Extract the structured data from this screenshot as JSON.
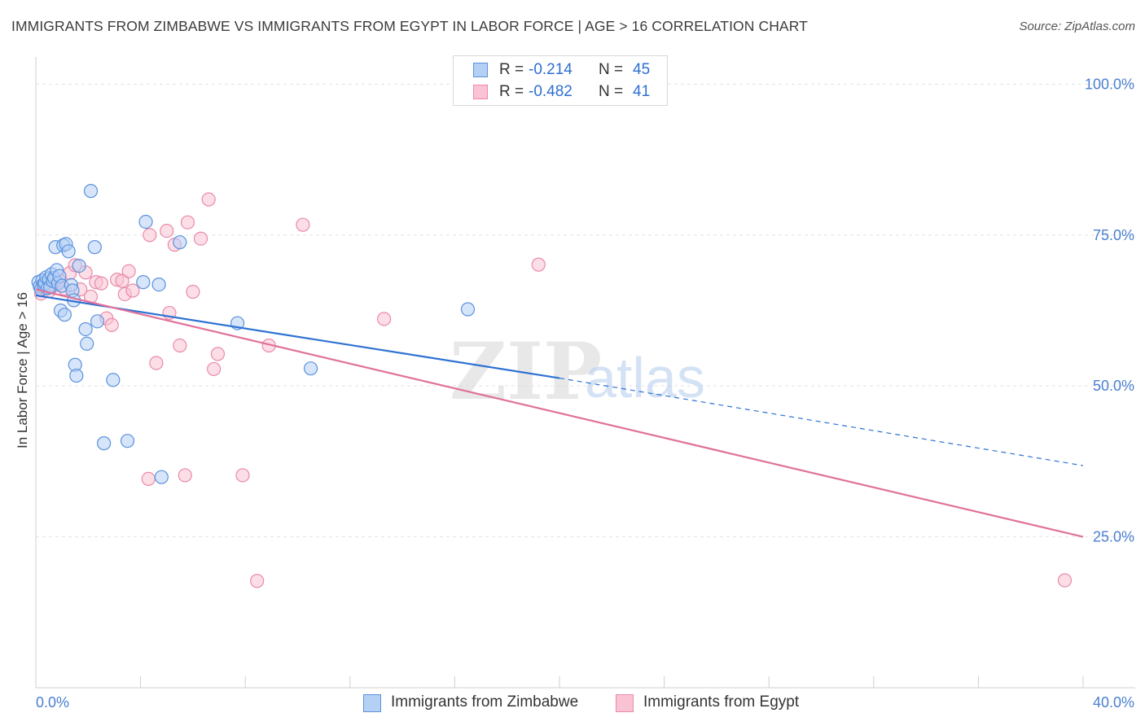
{
  "header": {
    "title": "IMMIGRANTS FROM ZIMBABWE VS IMMIGRANTS FROM EGYPT IN LABOR FORCE | AGE > 16 CORRELATION CHART",
    "source": "Source: ZipAtlas.com"
  },
  "watermark": {
    "zip": "ZIP",
    "atlas": "atlas"
  },
  "legend": {
    "r_label": "R =",
    "n_label": "N =",
    "rows": [
      {
        "r": "-0.214",
        "n": "45"
      },
      {
        "r": "-0.482",
        "n": "41"
      }
    ]
  },
  "colors": {
    "zimbabwe_fill": "#b5d0f5",
    "zimbabwe_stroke": "#5b92dc",
    "zimbabwe_line": "#2e72d2",
    "egypt_fill": "#f9c3d3",
    "egypt_stroke": "#e98aa9",
    "egypt_line": "#e0719a",
    "tick_label": "#4a7fd0"
  },
  "chart_data": {
    "type": "scatter",
    "title": "IMMIGRANTS FROM ZIMBABWE VS IMMIGRANTS FROM EGYPT IN LABOR FORCE | AGE > 16 CORRELATION CHART",
    "xlabel": "",
    "ylabel": "In Labor Force | Age > 16",
    "xlim": [
      0,
      40
    ],
    "ylim": [
      0,
      104.5
    ],
    "x_tick_labels": [
      "0.0%",
      "40.0%"
    ],
    "y_ticks": [
      25,
      50,
      75,
      100
    ],
    "y_tick_labels": [
      "25.0%",
      "50.0%",
      "75.0%",
      "100.0%"
    ],
    "grid": true,
    "series": [
      {
        "name": "Immigrants from Zimbabwe",
        "r": -0.214,
        "n": 45,
        "points": [
          [
            0.1,
            67.2
          ],
          [
            0.15,
            66.5
          ],
          [
            0.2,
            66.0
          ],
          [
            0.25,
            67.5
          ],
          [
            0.3,
            66.8
          ],
          [
            0.35,
            67.0
          ],
          [
            0.4,
            68.0
          ],
          [
            0.45,
            66.2
          ],
          [
            0.5,
            67.7
          ],
          [
            0.55,
            66.4
          ],
          [
            0.6,
            68.5
          ],
          [
            0.65,
            67.4
          ],
          [
            0.7,
            67.9
          ],
          [
            0.75,
            73.0
          ],
          [
            0.8,
            69.2
          ],
          [
            0.85,
            67.0
          ],
          [
            0.9,
            68.2
          ],
          [
            0.95,
            62.5
          ],
          [
            1.0,
            66.6
          ],
          [
            1.05,
            73.3
          ],
          [
            1.1,
            61.8
          ],
          [
            1.15,
            73.5
          ],
          [
            1.25,
            72.3
          ],
          [
            1.35,
            66.7
          ],
          [
            1.4,
            65.8
          ],
          [
            1.45,
            64.2
          ],
          [
            1.5,
            53.5
          ],
          [
            1.55,
            51.7
          ],
          [
            1.65,
            69.9
          ],
          [
            1.9,
            59.4
          ],
          [
            1.95,
            57.0
          ],
          [
            2.1,
            82.3
          ],
          [
            2.25,
            73.0
          ],
          [
            2.35,
            60.7
          ],
          [
            2.6,
            40.5
          ],
          [
            2.95,
            51.0
          ],
          [
            3.5,
            40.9
          ],
          [
            4.1,
            67.2
          ],
          [
            4.2,
            77.2
          ],
          [
            4.7,
            66.8
          ],
          [
            4.8,
            34.9
          ],
          [
            5.5,
            73.8
          ],
          [
            7.7,
            60.4
          ],
          [
            10.5,
            52.9
          ],
          [
            16.5,
            62.7
          ]
        ],
        "trend": {
          "x0": 0,
          "y0": 65.0,
          "x1": 20,
          "y1": 51.3,
          "dashed_to_x": 40,
          "dashed_to_y": 36.8
        }
      },
      {
        "name": "Immigrants from Egypt",
        "r": -0.482,
        "n": 41,
        "points": [
          [
            0.2,
            65.3
          ],
          [
            0.3,
            66.2
          ],
          [
            0.5,
            65.7
          ],
          [
            0.7,
            66.6
          ],
          [
            0.9,
            67.4
          ],
          [
            1.1,
            66.1
          ],
          [
            1.3,
            68.7
          ],
          [
            1.5,
            70.0
          ],
          [
            1.7,
            66.0
          ],
          [
            1.9,
            68.8
          ],
          [
            2.1,
            64.8
          ],
          [
            2.3,
            67.2
          ],
          [
            2.5,
            67.0
          ],
          [
            2.7,
            61.2
          ],
          [
            2.9,
            60.1
          ],
          [
            3.1,
            67.6
          ],
          [
            3.3,
            67.4
          ],
          [
            3.4,
            65.2
          ],
          [
            3.55,
            69.0
          ],
          [
            3.7,
            65.8
          ],
          [
            4.3,
            34.6
          ],
          [
            4.35,
            75.0
          ],
          [
            4.6,
            53.8
          ],
          [
            5.0,
            75.7
          ],
          [
            5.1,
            62.1
          ],
          [
            5.3,
            73.4
          ],
          [
            5.5,
            56.7
          ],
          [
            5.7,
            35.2
          ],
          [
            5.8,
            77.1
          ],
          [
            6.0,
            65.6
          ],
          [
            6.3,
            74.4
          ],
          [
            6.6,
            80.9
          ],
          [
            6.8,
            52.8
          ],
          [
            6.95,
            55.3
          ],
          [
            7.9,
            35.2
          ],
          [
            8.45,
            17.7
          ],
          [
            8.9,
            56.7
          ],
          [
            10.2,
            76.7
          ],
          [
            13.3,
            61.1
          ],
          [
            19.2,
            70.1
          ],
          [
            39.3,
            17.8
          ]
        ],
        "trend": {
          "x0": 0,
          "y0": 66.0,
          "x1": 40,
          "y1": 25.0
        }
      }
    ]
  }
}
